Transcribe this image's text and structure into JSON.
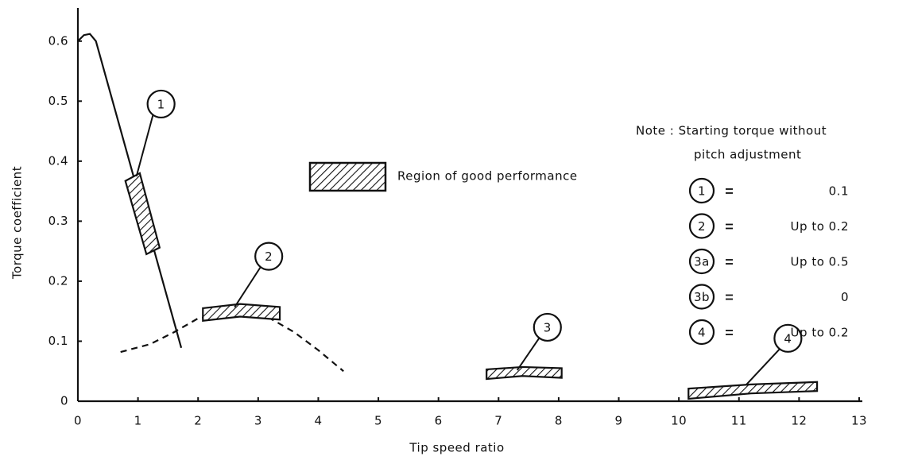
{
  "chart_data": {
    "type": "line",
    "x_label": "Tip speed ratio",
    "y_label": "Torque coefficient",
    "xlim": [
      0,
      13
    ],
    "ylim": [
      0,
      0.65
    ],
    "xticks": [
      0,
      1,
      2,
      3,
      4,
      5,
      6,
      7,
      8,
      9,
      10,
      11,
      12,
      13
    ],
    "yticks": [
      0,
      0.1,
      0.2,
      0.3,
      0.4,
      0.5,
      0.6
    ],
    "color": "#111111",
    "lines": [
      {
        "style": "solid",
        "x": [
          0,
          0.1,
          0.2,
          0.3,
          1.72
        ],
        "values": [
          0.6,
          0.61,
          0.612,
          0.6,
          0.089
        ]
      },
      {
        "style": "dashed",
        "x": [
          0.71,
          1.2,
          1.6,
          2.0,
          2.67,
          3.2,
          3.6,
          4.0,
          4.42
        ],
        "values": [
          0.082,
          0.095,
          0.115,
          0.138,
          0.148,
          0.138,
          0.115,
          0.085,
          0.05
        ]
      }
    ],
    "regions": [
      {
        "label": "1",
        "x": [
          0.79,
          1.03,
          1.36,
          1.14
        ],
        "y": [
          0.367,
          0.38,
          0.256,
          0.245
        ]
      },
      {
        "label": "2",
        "x": [
          2.08,
          2.7,
          3.36,
          3.36,
          2.7,
          2.08
        ],
        "y": [
          0.155,
          0.162,
          0.157,
          0.136,
          0.141,
          0.134
        ]
      },
      {
        "label": "3",
        "x": [
          6.8,
          7.4,
          8.05,
          8.05,
          7.4,
          6.8
        ],
        "y": [
          0.053,
          0.057,
          0.055,
          0.039,
          0.042,
          0.037
        ]
      },
      {
        "label": "4",
        "x": [
          10.16,
          11.2,
          12.3,
          12.3,
          11.2,
          10.16
        ],
        "y": [
          0.021,
          0.028,
          0.032,
          0.017,
          0.013,
          0.004
        ]
      }
    ],
    "legend_label": "Region of good performance",
    "note": {
      "title": "Note : Starting torque without",
      "subtitle": "pitch adjustment",
      "rows": [
        {
          "label": "1",
          "value": 0.1
        },
        {
          "label": "2",
          "value": "Up to 0.2"
        },
        {
          "label": "3a",
          "value": "Up to 0.5"
        },
        {
          "label": "3b",
          "value": 0
        },
        {
          "label": "4",
          "value": "Up to 0.2"
        }
      ]
    }
  }
}
